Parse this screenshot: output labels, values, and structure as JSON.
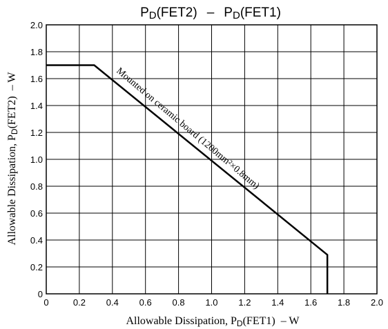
{
  "chart_data": {
    "type": "line",
    "title": {
      "p1": "P",
      "s1": "D",
      "t1": "(FET2)",
      "sep": "–",
      "p2": "P",
      "s2": "D",
      "t2": "(FET1)"
    },
    "xlabel": {
      "pre": "Allowable Dissipation, P",
      "sub": "D",
      "post": "(FET1)",
      "unit": "–  W"
    },
    "ylabel": {
      "pre": "Allowable Dissipation, P",
      "sub": "D",
      "post": "(FET2)",
      "unit": "–  W"
    },
    "xlim": [
      0,
      2.0
    ],
    "ylim": [
      0,
      2.0
    ],
    "grid": true,
    "x_ticks": [
      "0",
      "0.2",
      "0.4",
      "0.6",
      "0.8",
      "1.0",
      "1.2",
      "1.4",
      "1.6",
      "1.8",
      "2.0"
    ],
    "y_ticks": [
      "0",
      "0.2",
      "0.4",
      "0.6",
      "0.8",
      "1.0",
      "1.2",
      "1.4",
      "1.6",
      "1.8",
      "2.0"
    ],
    "series": [
      {
        "x": [
          0,
          0.29,
          1.7,
          1.7
        ],
        "y": [
          1.7,
          1.7,
          0.29,
          0
        ]
      }
    ],
    "annotation": "Mounted on ceramic board (1200mm²×0.8mm)"
  }
}
